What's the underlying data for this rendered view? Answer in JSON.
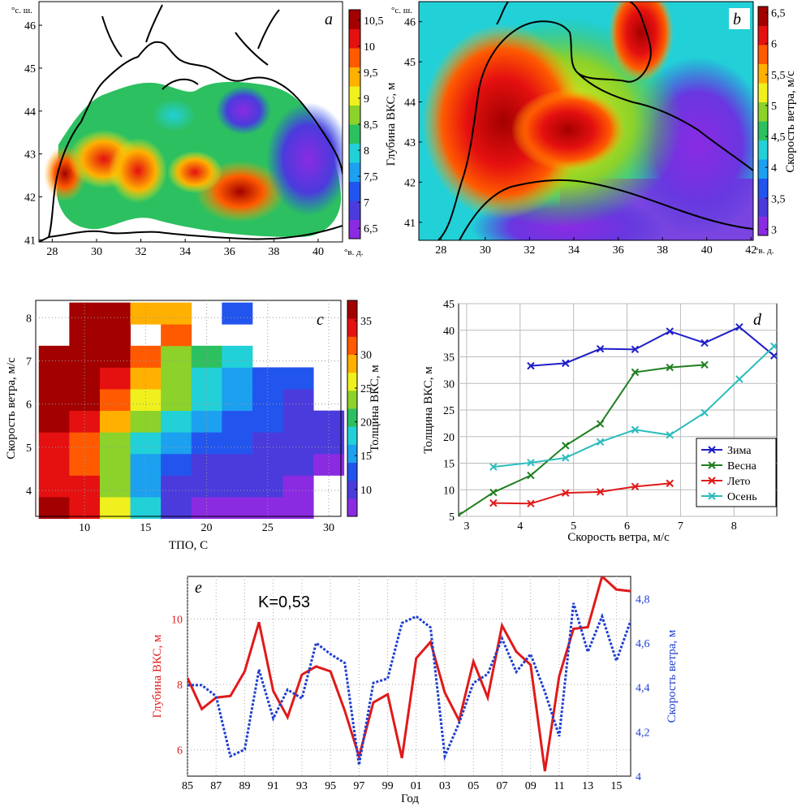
{
  "chart_data": [
    {
      "id": "a",
      "panel_letter": "a",
      "type": "heatmap",
      "colorbar_label": "Глубина ВКС, м",
      "colorbar_ticks": [
        "6,5",
        "7",
        "7,5",
        "8",
        "8,5",
        "9",
        "9,5",
        "10",
        "10,5"
      ],
      "colorbar_range": [
        6.3,
        10.7
      ],
      "colorbar_colors": [
        "#8a2be2",
        "#4b3bdc",
        "#2255ee",
        "#1ca0f0",
        "#22d0d8",
        "#2cc060",
        "#8cd22a",
        "#f0f01e",
        "#ffb000",
        "#ff5a00",
        "#e51010",
        "#a30000"
      ],
      "x_ticks": [
        "28",
        "30",
        "32",
        "34",
        "36",
        "38",
        "40"
      ],
      "x_unit": "°в. д.",
      "y_ticks": [
        "41",
        "42",
        "43",
        "44",
        "45",
        "46"
      ],
      "y_unit": "°с. ш."
    },
    {
      "id": "b",
      "panel_letter": "b",
      "type": "heatmap",
      "colorbar_label": "Скорость ветра, м/с",
      "colorbar_ticks": [
        "3",
        "3,5",
        "4",
        "4,5",
        "5",
        "5,5",
        "6",
        "6,5"
      ],
      "colorbar_range": [
        2.9,
        6.6
      ],
      "colorbar_colors": [
        "#8a2be2",
        "#4b3bdc",
        "#2255ee",
        "#1ca0f0",
        "#22d0d8",
        "#2cc060",
        "#8cd22a",
        "#f0f01e",
        "#ffb000",
        "#ff5a00",
        "#e51010",
        "#a30000"
      ],
      "x_ticks": [
        "28",
        "30",
        "32",
        "34",
        "36",
        "38",
        "40",
        "42"
      ],
      "x_unit": "°в. д.",
      "y_ticks": [
        "41",
        "42",
        "43",
        "44",
        "45",
        "46"
      ],
      "y_unit": "°с. ш."
    },
    {
      "id": "c",
      "panel_letter": "c",
      "type": "heatmap",
      "xlabel": "ТПО, С",
      "ylabel": "Скорость ветра, м/с",
      "colorbar_label": "Толщина ВКС, м",
      "colorbar_ticks": [
        "10",
        "15",
        "20",
        "25",
        "30",
        "35"
      ],
      "colorbar_range": [
        6,
        38
      ],
      "colorbar_colors": [
        "#8a2be2",
        "#4b3bdc",
        "#2255ee",
        "#1ca0f0",
        "#22d0d8",
        "#2cc060",
        "#8cd22a",
        "#f0f01e",
        "#ffb000",
        "#ff5a00",
        "#e51010",
        "#a30000"
      ],
      "xlim": [
        6,
        31
      ],
      "ylim": [
        3.4,
        8.4
      ],
      "x_ticks": [
        10,
        15,
        20,
        25,
        30
      ],
      "y_ticks": [
        4,
        5,
        6,
        7,
        8
      ],
      "x_centers": [
        7.5,
        10,
        12.5,
        15,
        17.5,
        20,
        22.5,
        25,
        27.5,
        30
      ],
      "y_centers": [
        3.6,
        4.1,
        4.6,
        5.1,
        5.6,
        6.1,
        6.6,
        7.1,
        7.6,
        8.1
      ],
      "values": [
        [
          37,
          34,
          26,
          17,
          10,
          8,
          8,
          8,
          8,
          null
        ],
        [
          35,
          33,
          24,
          16,
          11,
          9,
          9,
          9,
          8,
          null
        ],
        [
          34,
          31,
          23,
          16,
          12,
          11,
          10,
          9,
          9,
          8
        ],
        [
          35,
          32,
          24,
          19,
          14,
          13,
          12,
          11,
          10,
          9
        ],
        [
          36,
          33,
          28,
          23,
          17,
          15,
          13,
          12,
          11,
          10
        ],
        [
          37,
          36,
          30,
          27,
          22,
          17,
          15,
          13,
          11,
          null
        ],
        [
          37,
          37,
          34,
          29,
          24,
          19,
          16,
          13,
          12,
          null
        ],
        [
          37,
          37,
          36,
          31,
          24,
          20,
          17,
          null,
          null,
          null
        ],
        [
          null,
          38,
          38,
          null,
          31,
          null,
          null,
          null,
          null,
          null
        ],
        [
          null,
          38,
          38,
          29,
          29,
          null,
          12,
          null,
          null,
          null
        ]
      ]
    },
    {
      "id": "d",
      "panel_letter": "d",
      "type": "line",
      "xlabel": "Скорость ветра, м/с",
      "ylabel": "Толщина ВКС, м",
      "xlim": [
        2.85,
        8.8
      ],
      "ylim": [
        5,
        45
      ],
      "x_ticks": [
        3,
        4,
        5,
        6,
        7,
        8
      ],
      "y_ticks": [
        5,
        10,
        15,
        20,
        25,
        30,
        35,
        40,
        45
      ],
      "legend_position": "bottom-right",
      "series": [
        {
          "name": "Зима",
          "color": "#1f1fc8",
          "x": [
            4.2,
            4.85,
            5.5,
            6.15,
            6.8,
            7.45,
            8.1,
            8.75
          ],
          "y": [
            33.3,
            33.8,
            36.5,
            36.4,
            39.8,
            37.6,
            40.6,
            35.2
          ]
        },
        {
          "name": "Весна",
          "color": "#1f7f1f",
          "x": [
            2.85,
            3.5,
            4.2,
            4.85,
            5.5,
            6.15,
            6.8,
            7.45
          ],
          "y": [
            5.2,
            9.5,
            12.7,
            18.3,
            22.4,
            32.1,
            33.0,
            33.5
          ]
        },
        {
          "name": "Лето",
          "color": "#e01a1a",
          "x": [
            3.5,
            4.2,
            4.85,
            5.5,
            6.15,
            6.8
          ],
          "y": [
            7.5,
            7.4,
            9.4,
            9.6,
            10.6,
            11.2
          ]
        },
        {
          "name": "Осень",
          "color": "#2cbcbc",
          "x": [
            3.5,
            4.2,
            4.85,
            5.5,
            6.15,
            6.8,
            7.45,
            8.1,
            8.75
          ],
          "y": [
            14.3,
            15.1,
            16.0,
            19.0,
            21.3,
            20.3,
            24.5,
            30.8,
            37.0
          ]
        }
      ]
    },
    {
      "id": "e",
      "panel_letter": "e",
      "type": "line",
      "annotation": "K=0,53",
      "xlabel": "Год",
      "ylabel": "Глубина ВКС, м",
      "ylabel_right": "Скорость ветра, м",
      "x_ticks": [
        "85",
        "87",
        "89",
        "91",
        "93",
        "95",
        "97",
        "99",
        "01",
        "03",
        "05",
        "07",
        "09",
        "11",
        "13",
        "15"
      ],
      "y_ticks": [
        "6",
        "8",
        "10"
      ],
      "y_right_ticks": [
        "4",
        "4,2",
        "4,4",
        "4,6",
        "4,8"
      ],
      "xlim": [
        1985,
        2016
      ],
      "ylim": [
        5.2,
        11.3
      ],
      "y_right_lim": [
        4.0,
        4.9
      ],
      "series": [
        {
          "name": "Глубина ВКС",
          "color": "#e01a1a",
          "x": [
            1985,
            1986,
            1987,
            1988,
            1989,
            1990,
            1991,
            1992,
            1993,
            1994,
            1995,
            1996,
            1997,
            1998,
            1999,
            2000,
            2001,
            2002,
            2003,
            2004,
            2005,
            2006,
            2007,
            2008,
            2009,
            2010,
            2011,
            2012,
            2013,
            2014,
            2015,
            2016
          ],
          "y": [
            8.2,
            7.25,
            7.6,
            7.65,
            8.4,
            9.9,
            7.8,
            7.0,
            8.3,
            8.55,
            8.4,
            7.2,
            5.8,
            7.45,
            7.7,
            5.75,
            8.8,
            9.3,
            7.75,
            6.9,
            8.7,
            7.6,
            9.8,
            9.0,
            8.6,
            5.35,
            8.25,
            9.7,
            9.75,
            11.3,
            10.9,
            10.85
          ]
        },
        {
          "name": "Скорость ветра",
          "color": "#1f3fd0",
          "dashed": true,
          "x": [
            1985,
            1986,
            1987,
            1988,
            1989,
            1990,
            1991,
            1992,
            1993,
            1994,
            1995,
            1996,
            1997,
            1998,
            1999,
            2000,
            2001,
            2002,
            2003,
            2004,
            2005,
            2006,
            2007,
            2008,
            2009,
            2010,
            2011,
            2012,
            2013,
            2014,
            2015,
            2016
          ],
          "y": [
            4.41,
            4.41,
            4.36,
            4.09,
            4.12,
            4.48,
            4.26,
            4.39,
            4.35,
            4.6,
            4.55,
            4.51,
            4.05,
            4.42,
            4.44,
            4.69,
            4.72,
            4.67,
            4.09,
            4.24,
            4.42,
            4.46,
            4.62,
            4.47,
            4.55,
            4.38,
            4.18,
            4.78,
            4.56,
            4.72,
            4.52,
            4.7
          ]
        }
      ]
    }
  ]
}
